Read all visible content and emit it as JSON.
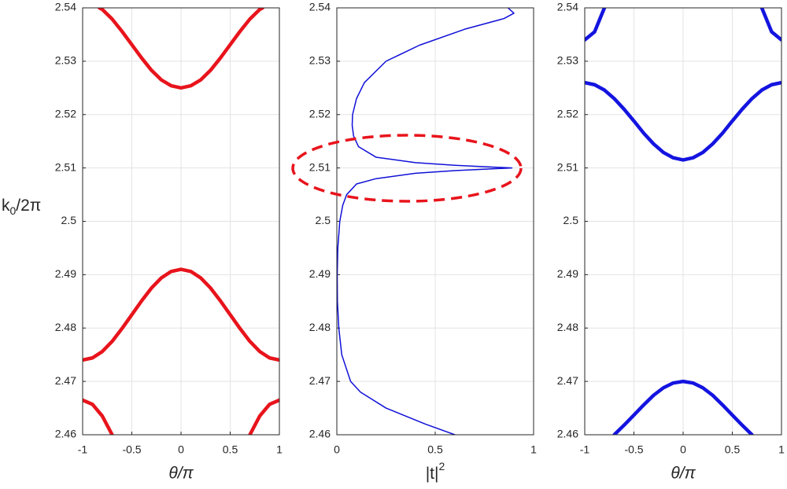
{
  "chart_data": [
    {
      "type": "line",
      "xlabel": "θ/π",
      "ylabel": [
        "k",
        "0",
        "/2π"
      ],
      "xlim": [
        -1,
        1
      ],
      "xticks": [
        -1,
        -0.5,
        0,
        0.5,
        1
      ],
      "ylim": [
        2.46,
        2.54
      ],
      "yticks": [
        2.46,
        2.47,
        2.48,
        2.49,
        2.5,
        2.51,
        2.52,
        2.53,
        2.54
      ],
      "grid": true,
      "series": [
        {
          "color": "#e8141c",
          "x": [
            -0.83,
            -0.8,
            -0.7,
            -0.6,
            -0.5,
            -0.4,
            -0.3,
            -0.2,
            -0.1,
            0,
            0.1,
            0.2,
            0.3,
            0.4,
            0.5,
            0.6,
            0.7,
            0.8,
            0.83
          ],
          "values": [
            2.54,
            2.5397,
            2.5379,
            2.5356,
            2.5331,
            2.5306,
            2.5283,
            2.5265,
            2.5254,
            2.525,
            2.5254,
            2.5265,
            2.5283,
            2.5306,
            2.5331,
            2.5356,
            2.5379,
            2.5397,
            2.54
          ]
        },
        {
          "color": "#e8141c",
          "x": [
            -1,
            -0.9,
            -0.8,
            -0.7,
            -0.6,
            -0.5,
            -0.4,
            -0.3,
            -0.2,
            -0.1,
            0,
            0.1,
            0.2,
            0.3,
            0.4,
            0.5,
            0.6,
            0.7,
            0.8,
            0.9,
            1
          ],
          "values": [
            2.474,
            2.4744,
            2.4756,
            2.4775,
            2.4799,
            2.4825,
            2.4851,
            2.4875,
            2.4894,
            2.4906,
            2.491,
            2.4906,
            2.4894,
            2.4875,
            2.4851,
            2.4825,
            2.4799,
            2.4775,
            2.4756,
            2.4744,
            2.474
          ]
        },
        {
          "color": "#e8141c",
          "x": [
            -1,
            -0.9,
            -0.8,
            -0.7
          ],
          "values": [
            2.4665,
            2.4657,
            2.4635,
            2.46
          ]
        },
        {
          "color": "#e8141c",
          "x": [
            0.7,
            0.8,
            0.9,
            1
          ],
          "values": [
            2.46,
            2.4635,
            2.4657,
            2.4665
          ]
        }
      ]
    },
    {
      "type": "line",
      "xlabel": [
        "|t|",
        "2"
      ],
      "xlim": [
        0,
        1
      ],
      "xticks": [
        0,
        0.5,
        1
      ],
      "ylim": [
        2.46,
        2.54
      ],
      "yticks": [
        2.46,
        2.47,
        2.48,
        2.49,
        2.5,
        2.51,
        2.52,
        2.53,
        2.54
      ],
      "grid": true,
      "series": [
        {
          "color": "#1010d8",
          "x": [
            0.6,
            0.45,
            0.25,
            0.12,
            0.07,
            0.025,
            0.01,
            0.003,
            0.002,
            0.005,
            0.015,
            0.03,
            0.05,
            0.1,
            0.2,
            0.4,
            0.6,
            0.89,
            0.6,
            0.4,
            0.2,
            0.11,
            0.085,
            0.078,
            0.08,
            0.1,
            0.14,
            0.25,
            0.42,
            0.65,
            0.85,
            0.9,
            0.87
          ],
          "values": [
            2.46,
            2.462,
            2.465,
            2.468,
            2.47,
            2.475,
            2.48,
            2.485,
            2.49,
            2.495,
            2.5,
            2.503,
            2.505,
            2.507,
            2.508,
            2.509,
            2.5095,
            2.51,
            2.5105,
            2.511,
            2.512,
            2.514,
            2.516,
            2.518,
            2.52,
            2.523,
            2.526,
            2.53,
            2.533,
            2.536,
            2.538,
            2.539,
            2.54
          ]
        }
      ]
    },
    {
      "type": "line",
      "xlabel": "θ/π",
      "xlim": [
        -1,
        1
      ],
      "xticks": [
        -1,
        -0.5,
        0,
        0.5,
        1
      ],
      "ylim": [
        2.46,
        2.54
      ],
      "yticks": [
        2.46,
        2.47,
        2.48,
        2.49,
        2.5,
        2.51,
        2.52,
        2.53,
        2.54
      ],
      "grid": true,
      "series": [
        {
          "color": "#1414e0",
          "x": [
            -1,
            -0.9,
            -0.8
          ],
          "values": [
            2.534,
            2.5355,
            2.54
          ]
        },
        {
          "color": "#1414e0",
          "x": [
            0.8,
            0.9,
            1
          ],
          "values": [
            2.54,
            2.5355,
            2.534
          ]
        },
        {
          "color": "#1414e0",
          "x": [
            -1,
            -0.9,
            -0.8,
            -0.7,
            -0.6,
            -0.5,
            -0.4,
            -0.3,
            -0.2,
            -0.1,
            0,
            0.1,
            0.2,
            0.3,
            0.4,
            0.5,
            0.6,
            0.7,
            0.8,
            0.9,
            1
          ],
          "values": [
            2.526,
            2.5256,
            2.5246,
            2.523,
            2.521,
            2.5188,
            2.5165,
            2.5145,
            2.5129,
            2.5119,
            2.5115,
            2.5119,
            2.5129,
            2.5145,
            2.5165,
            2.5188,
            2.521,
            2.523,
            2.5246,
            2.5256,
            2.526
          ]
        },
        {
          "color": "#1414e0",
          "x": [
            -0.7,
            -0.6,
            -0.5,
            -0.4,
            -0.3,
            -0.2,
            -0.1,
            0,
            0.1,
            0.2,
            0.3,
            0.4,
            0.5,
            0.6,
            0.7
          ],
          "values": [
            2.46,
            2.4618,
            2.4637,
            2.4656,
            2.4674,
            2.4688,
            2.4697,
            2.47,
            2.4697,
            2.4688,
            2.4674,
            2.4656,
            2.4637,
            2.4618,
            2.46
          ]
        }
      ]
    }
  ]
}
